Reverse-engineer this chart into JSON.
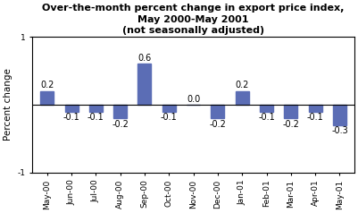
{
  "categories": [
    "May-00",
    "Jun-00",
    "Jul-00",
    "Aug-00",
    "Sep-00",
    "Oct-00",
    "Nov-00",
    "Dec-00",
    "Jan-01",
    "Feb-01",
    "Mar-01",
    "Apr-01",
    "May-01"
  ],
  "values": [
    0.2,
    -0.1,
    -0.1,
    -0.2,
    0.6,
    -0.1,
    0.0,
    -0.2,
    0.2,
    -0.1,
    -0.2,
    -0.1,
    -0.3
  ],
  "bar_color": "#5b6db5",
  "title_line1": "Over-the-month percent change in export price index,",
  "title_line2": "May 2000-May 2001",
  "title_line3": "(not seasonally adjusted)",
  "ylabel": "Percent change",
  "ylim": [
    -1,
    1
  ],
  "yticks": [
    -1,
    1
  ],
  "ytick_labels": [
    "-1",
    "1"
  ],
  "background_color": "#ffffff",
  "title_fontsize": 8,
  "label_fontsize": 7,
  "tick_fontsize": 6.5,
  "ylabel_fontsize": 7.5,
  "bar_width": 0.55
}
